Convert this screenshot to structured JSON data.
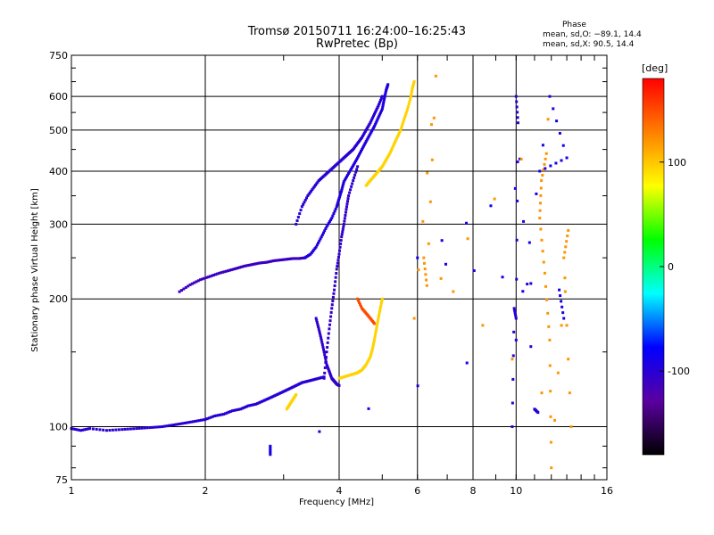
{
  "chart_data": {
    "type": "scatter",
    "title": "Tromsø 20150711 16:24:00–16:25:43",
    "subtitle": "RwPretec (Bp)",
    "xlabel": "Frequency [MHz]",
    "ylabel": "Stationary phase Virtual Height [km]",
    "x_scale": "log",
    "y_scale": "log",
    "xlim": [
      1,
      16
    ],
    "ylim": [
      75,
      750
    ],
    "x_ticks": [
      1,
      2,
      4,
      6,
      8,
      10,
      16
    ],
    "x_tick_labels": [
      "1",
      "2",
      "4",
      "6",
      "8",
      "10",
      "16"
    ],
    "y_ticks": [
      75,
      100,
      200,
      300,
      400,
      500,
      600,
      750
    ],
    "y_tick_labels": [
      "75",
      "100",
      "200",
      "300",
      "400",
      "500",
      "600",
      "750"
    ],
    "grid": true,
    "phase_stats": {
      "title": "Phase",
      "o_line": "mean, sd,O: −89.1, 14.4",
      "x_line": "mean, sd,X:  90.5, 14.4"
    },
    "colorbar": {
      "unit": "[deg]",
      "range": [
        -180,
        180
      ],
      "ticks": [
        100,
        0,
        -100
      ],
      "tick_labels": [
        "100",
        "0",
        "-100"
      ],
      "colors": [
        "#ff0000",
        "#ff8000",
        "#ffff00",
        "#00ff00",
        "#00ffff",
        "#0000ff",
        "#5a00a0",
        "#000000"
      ]
    },
    "traces": [
      {
        "name": "",
        "phase": -100,
        "points": [
          [
            1.0,
            99
          ],
          [
            1.05,
            98
          ],
          [
            1.1,
            99
          ],
          [
            1.2,
            98
          ],
          [
            1.3,
            98.5
          ],
          [
            1.4,
            99
          ],
          [
            1.5,
            99.5
          ],
          [
            1.6,
            100
          ],
          [
            1.7,
            101
          ],
          [
            1.8,
            102
          ],
          [
            1.9,
            103
          ],
          [
            2.0,
            104
          ],
          [
            2.1,
            106
          ],
          [
            2.2,
            107
          ],
          [
            2.3,
            109
          ],
          [
            2.4,
            110
          ],
          [
            2.5,
            112
          ],
          [
            2.6,
            113
          ],
          [
            2.7,
            115
          ],
          [
            2.8,
            117
          ],
          [
            2.9,
            119
          ],
          [
            3.0,
            121
          ],
          [
            3.1,
            123
          ],
          [
            3.2,
            125
          ],
          [
            3.3,
            127
          ],
          [
            3.4,
            128
          ],
          [
            3.5,
            129
          ],
          [
            3.6,
            130
          ],
          [
            3.7,
            131
          ]
        ]
      },
      {
        "name": "",
        "phase": -110,
        "points": [
          [
            1.75,
            208
          ],
          [
            1.85,
            216
          ],
          [
            1.95,
            222
          ],
          [
            2.05,
            226
          ],
          [
            2.15,
            230
          ],
          [
            2.25,
            233
          ],
          [
            2.35,
            236
          ],
          [
            2.45,
            239
          ],
          [
            2.55,
            241
          ],
          [
            2.65,
            243
          ],
          [
            2.75,
            244
          ],
          [
            2.85,
            246
          ],
          [
            2.95,
            247
          ],
          [
            3.05,
            248
          ],
          [
            3.15,
            249
          ],
          [
            3.25,
            249
          ],
          [
            3.35,
            250
          ]
        ]
      },
      {
        "name": "",
        "phase": -95,
        "points": [
          [
            3.35,
            250
          ],
          [
            3.45,
            255
          ],
          [
            3.55,
            265
          ],
          [
            3.65,
            280
          ],
          [
            3.75,
            296
          ],
          [
            3.85,
            310
          ],
          [
            3.95,
            330
          ],
          [
            4.0,
            345
          ],
          [
            4.05,
            360
          ],
          [
            4.1,
            378
          ],
          [
            4.2,
            395
          ],
          [
            4.3,
            412
          ],
          [
            4.4,
            430
          ],
          [
            4.5,
            450
          ],
          [
            4.6,
            470
          ],
          [
            4.7,
            490
          ],
          [
            4.8,
            510
          ],
          [
            4.9,
            535
          ],
          [
            5.0,
            560
          ],
          [
            5.05,
            590
          ],
          [
            5.1,
            620
          ],
          [
            5.15,
            640
          ]
        ]
      },
      {
        "name": "",
        "phase": -100,
        "points": [
          [
            3.2,
            300
          ],
          [
            3.3,
            330
          ],
          [
            3.4,
            350
          ],
          [
            3.5,
            365
          ],
          [
            3.6,
            380
          ],
          [
            3.7,
            390
          ],
          [
            3.8,
            400
          ],
          [
            3.9,
            410
          ],
          [
            4.0,
            420
          ],
          [
            4.1,
            430
          ],
          [
            4.2,
            440
          ],
          [
            4.3,
            450
          ],
          [
            4.4,
            465
          ],
          [
            4.5,
            480
          ],
          [
            4.6,
            500
          ],
          [
            4.7,
            520
          ],
          [
            4.8,
            545
          ],
          [
            4.9,
            570
          ],
          [
            5.0,
            600
          ]
        ]
      },
      {
        "name": "",
        "phase": -105,
        "points": [
          [
            3.7,
            130
          ],
          [
            3.75,
            150
          ],
          [
            3.8,
            170
          ],
          [
            3.85,
            190
          ],
          [
            3.9,
            210
          ],
          [
            3.95,
            235
          ],
          [
            4.0,
            255
          ],
          [
            4.05,
            280
          ],
          [
            4.1,
            300
          ],
          [
            4.15,
            325
          ],
          [
            4.2,
            350
          ],
          [
            4.3,
            380
          ],
          [
            4.4,
            410
          ]
        ]
      },
      {
        "name": "",
        "phase": -105,
        "points": [
          [
            3.55,
            180
          ],
          [
            3.6,
            170
          ],
          [
            3.65,
            160
          ],
          [
            3.7,
            150
          ],
          [
            3.75,
            140
          ],
          [
            3.8,
            135
          ],
          [
            3.85,
            130
          ],
          [
            3.9,
            128
          ],
          [
            3.95,
            126
          ],
          [
            4.0,
            125
          ]
        ]
      },
      {
        "name": "",
        "phase": 95,
        "points": [
          [
            4.0,
            130
          ],
          [
            4.1,
            131
          ],
          [
            4.2,
            132
          ],
          [
            4.3,
            133
          ],
          [
            4.4,
            134
          ],
          [
            4.5,
            136
          ],
          [
            4.6,
            140
          ],
          [
            4.7,
            146
          ],
          [
            4.75,
            152
          ],
          [
            4.8,
            160
          ],
          [
            4.85,
            170
          ],
          [
            4.9,
            180
          ],
          [
            4.95,
            190
          ],
          [
            5.0,
            200
          ]
        ]
      },
      {
        "name": "",
        "phase": 95,
        "points": [
          [
            4.6,
            370
          ],
          [
            4.7,
            380
          ],
          [
            4.8,
            390
          ],
          [
            4.9,
            400
          ],
          [
            5.0,
            410
          ],
          [
            5.1,
            425
          ],
          [
            5.2,
            440
          ],
          [
            5.3,
            460
          ],
          [
            5.4,
            480
          ],
          [
            5.5,
            500
          ],
          [
            5.6,
            530
          ],
          [
            5.7,
            560
          ],
          [
            5.8,
            600
          ],
          [
            5.85,
            630
          ],
          [
            5.9,
            650
          ]
        ]
      },
      {
        "name": "",
        "phase": 95,
        "points": [
          [
            3.05,
            110
          ],
          [
            3.1,
            113
          ],
          [
            3.15,
            116
          ],
          [
            3.2,
            119
          ]
        ]
      },
      {
        "name": "",
        "phase": 150,
        "points": [
          [
            4.4,
            200
          ],
          [
            4.5,
            190
          ],
          [
            4.6,
            185
          ],
          [
            4.7,
            180
          ],
          [
            4.8,
            175
          ]
        ]
      },
      {
        "name": "",
        "phase": -100,
        "points": [
          [
            9.8,
            100
          ],
          [
            9.9,
            190
          ],
          [
            10.0,
            180
          ],
          [
            10.1,
            520
          ],
          [
            10.0,
            600
          ],
          [
            11.0,
            110
          ],
          [
            11.2,
            108
          ]
        ]
      },
      {
        "name": "",
        "phase": 120,
        "points": [
          [
            11.7,
            440
          ],
          [
            11.4,
            380
          ],
          [
            11.3,
            310
          ],
          [
            11.6,
            230
          ],
          [
            11.9,
            160
          ],
          [
            12.0,
            80
          ],
          [
            13.1,
            290
          ],
          [
            12.8,
            250
          ],
          [
            13.3,
            100
          ],
          [
            6.2,
            250
          ],
          [
            6.3,
            215
          ],
          [
            6.6,
            670
          ],
          [
            5.9,
            180
          ],
          [
            11.8,
            530
          ]
        ]
      },
      {
        "name": "",
        "phase": -90,
        "points": [
          [
            2.8,
            90
          ],
          [
            2.8,
            86
          ],
          [
            10.0,
            160
          ],
          [
            11.9,
            600
          ],
          [
            13.0,
            430
          ],
          [
            11.3,
            400
          ],
          [
            6.0,
            250
          ],
          [
            12.5,
            210
          ],
          [
            12.8,
            180
          ]
        ]
      }
    ]
  }
}
